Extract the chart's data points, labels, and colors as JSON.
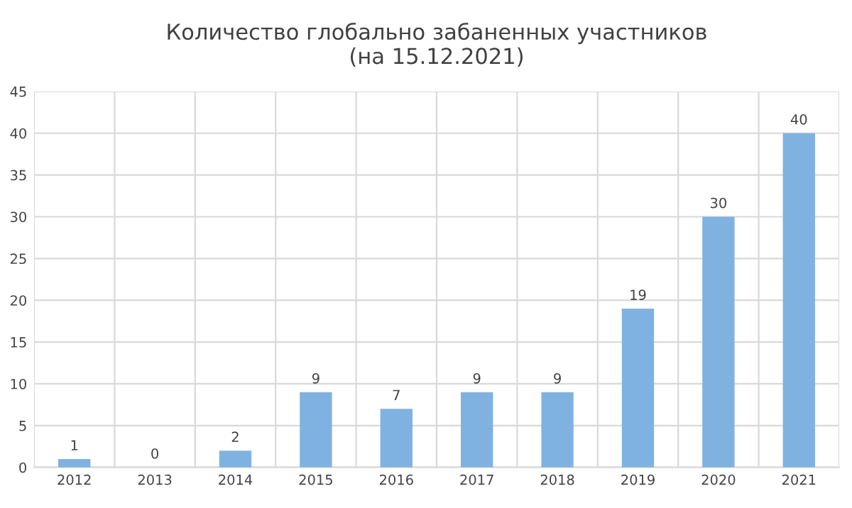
{
  "chart_data": {
    "type": "bar",
    "title": "Количество глобально забаненных участников\n(на 15.12.2021)",
    "categories": [
      "2012",
      "2013",
      "2014",
      "2015",
      "2016",
      "2017",
      "2018",
      "2019",
      "2020",
      "2021"
    ],
    "values": [
      1,
      0,
      2,
      9,
      7,
      9,
      9,
      19,
      30,
      40
    ],
    "color": "#7fb2e0",
    "ylim": [
      0,
      45
    ],
    "yticks": [
      0,
      5,
      10,
      15,
      20,
      25,
      30,
      35,
      40,
      45
    ],
    "grid": true,
    "data_labels": true
  }
}
